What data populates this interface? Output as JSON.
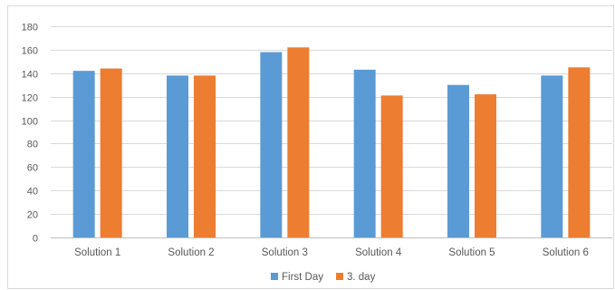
{
  "chart_data": {
    "type": "bar",
    "categories": [
      "Solution 1",
      "Solution 2",
      "Solution 3",
      "Solution 4",
      "Solution 5",
      "Solution 6"
    ],
    "series": [
      {
        "name": "First Day",
        "color": "#5b9bd5",
        "values": [
          142,
          138,
          158,
          143,
          130,
          138
        ]
      },
      {
        "name": "3. day",
        "color": "#ed7d31",
        "values": [
          144,
          138,
          162,
          121,
          122,
          145
        ]
      }
    ],
    "title": "",
    "xlabel": "",
    "ylabel": "",
    "ylim": [
      0,
      180
    ],
    "yticks": [
      0,
      20,
      40,
      60,
      80,
      100,
      120,
      140,
      160,
      180
    ],
    "grid": true,
    "legend_position": "bottom"
  }
}
